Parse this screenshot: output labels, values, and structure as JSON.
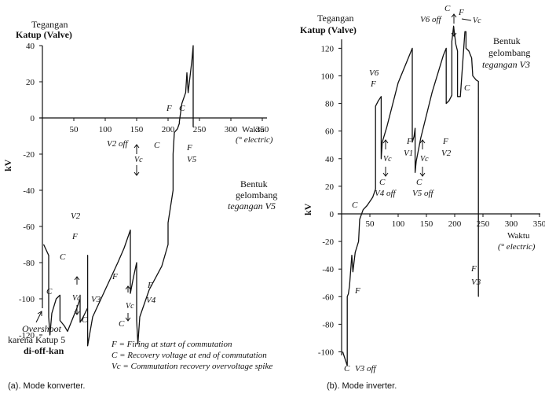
{
  "chart_data": [
    {
      "type": "line",
      "id": "a",
      "title": "",
      "caption": "(a). Mode konverter.",
      "ylabel_title_1": "Tegangan",
      "ylabel_title_2": "Katup (Valve)",
      "ylabel_unit": "kV",
      "xlabel_1": "Waktu",
      "xlabel_2": "(° electric)",
      "xlim": [
        0,
        350
      ],
      "ylim": [
        -120,
        40
      ],
      "xticks": [
        0,
        50,
        100,
        150,
        200,
        250,
        300,
        350
      ],
      "yticks": [
        40,
        20,
        0,
        -20,
        -40,
        -60,
        -80,
        -100,
        -120
      ],
      "xtick_labels": [
        "0",
        "50",
        "100",
        "150",
        "200",
        "250",
        "300",
        "350"
      ],
      "ytick_labels": [
        "40",
        "20",
        "0",
        "-20",
        "-40",
        "-60",
        "-80",
        "-100",
        "-120"
      ],
      "series": [
        {
          "points": [
            [
              2,
              -70
            ],
            [
              10,
              -76
            ],
            [
              10,
              -110
            ],
            [
              12,
              -120
            ],
            [
              15,
              -108
            ],
            [
              22,
              -100
            ],
            [
              28,
              -98
            ],
            [
              28,
              -112
            ],
            [
              35,
              -115
            ],
            [
              40,
              -118
            ],
            [
              55,
              -105
            ],
            [
              60,
              -100
            ],
            [
              60,
              -98
            ],
            [
              60,
              -113
            ],
            [
              65,
              -110
            ],
            [
              72,
              -105
            ],
            [
              72,
              -76
            ],
            [
              72,
              -126
            ],
            [
              80,
              -110
            ],
            [
              100,
              -95
            ],
            [
              120,
              -80
            ],
            [
              130,
              -72
            ],
            [
              140,
              -62
            ],
            [
              140,
              -97
            ],
            [
              145,
              -88
            ],
            [
              150,
              -80
            ],
            [
              150,
              -112
            ],
            [
              152,
              -125
            ],
            [
              155,
              -110
            ],
            [
              170,
              -95
            ],
            [
              190,
              -82
            ],
            [
              200,
              -70
            ],
            [
              200,
              -58
            ],
            [
              208,
              -40
            ],
            [
              208,
              -20
            ],
            [
              210,
              -8
            ],
            [
              215,
              -6
            ],
            [
              218,
              -3
            ],
            [
              218,
              -2
            ],
            [
              222,
              8
            ],
            [
              228,
              14
            ],
            [
              230,
              25
            ],
            [
              232,
              14
            ],
            [
              238,
              32
            ],
            [
              240,
              40
            ],
            [
              240,
              -5
            ]
          ]
        }
      ],
      "side_label_1": "Bentuk",
      "side_label_2": "gelombang",
      "side_label_3": "tegangan V5",
      "annotations": {
        "v2": "V2",
        "v3": "V3",
        "v4": "V4",
        "v5": "V5",
        "v2off": "V2 off",
        "vc": "Vc",
        "f": "F",
        "c": "C",
        "overshoot_1": "Overshoot",
        "overshoot_2": "karena Katup 5",
        "overshoot_3": "di-off-kan"
      },
      "legend": [
        "F = Firing at start of commutation",
        "C = Recovery voltage  at end of commutation",
        "Vc = Commutation recovery overvoltage spike"
      ]
    },
    {
      "type": "line",
      "id": "b",
      "title": "",
      "caption": "(b). Mode inverter.",
      "ylabel_title_1": "Tegangan",
      "ylabel_title_2": "Katup (Valve)",
      "ylabel_unit": "kV",
      "xlabel_1": "Waktu",
      "xlabel_2": "(° electric)",
      "xlim": [
        0,
        350
      ],
      "ylim": [
        -100,
        120
      ],
      "xticks": [
        0,
        50,
        100,
        150,
        200,
        250,
        300,
        350
      ],
      "yticks": [
        120,
        100,
        80,
        60,
        40,
        20,
        0,
        -20,
        -40,
        -60,
        -80,
        -100
      ],
      "xtick_labels": [
        "0",
        "50",
        "100",
        "150",
        "200",
        "250",
        "300",
        "350"
      ],
      "ytick_labels": [
        "120",
        "100",
        "80",
        "60",
        "40",
        "20",
        "0",
        "-20",
        "-40",
        "-60",
        "-80",
        "-100"
      ],
      "series": [
        {
          "points": [
            [
              2,
              -100
            ],
            [
              10,
              -110
            ],
            [
              10,
              -60
            ],
            [
              12,
              -58
            ],
            [
              14,
              -52
            ],
            [
              18,
              -30
            ],
            [
              20,
              -42
            ],
            [
              24,
              -28
            ],
            [
              30,
              -20
            ],
            [
              32,
              -4
            ],
            [
              38,
              3
            ],
            [
              45,
              6
            ],
            [
              55,
              12
            ],
            [
              60,
              18
            ],
            [
              60,
              78
            ],
            [
              65,
              82
            ],
            [
              70,
              85
            ],
            [
              70,
              40
            ],
            [
              72,
              52
            ],
            [
              80,
              63
            ],
            [
              100,
              95
            ],
            [
              115,
              110
            ],
            [
              125,
              120
            ],
            [
              125,
              52
            ],
            [
              128,
              56
            ],
            [
              130,
              62
            ],
            [
              130,
              30
            ],
            [
              132,
              38
            ],
            [
              140,
              55
            ],
            [
              160,
              88
            ],
            [
              180,
              115
            ],
            [
              185,
              120
            ],
            [
              185,
              80
            ],
            [
              190,
              82
            ],
            [
              195,
              86
            ],
            [
              195,
              125
            ],
            [
              198,
              136
            ],
            [
              202,
              123
            ],
            [
              205,
              118
            ],
            [
              205,
              85
            ],
            [
              210,
              85
            ],
            [
              218,
              132
            ],
            [
              220,
              132
            ],
            [
              220,
              120
            ],
            [
              225,
              118
            ],
            [
              230,
              113
            ],
            [
              232,
              100
            ],
            [
              238,
              97
            ],
            [
              242,
              96
            ],
            [
              242,
              -60
            ]
          ]
        }
      ],
      "side_label_1": "Bentuk",
      "side_label_2": "gelombang",
      "side_label_3": "tegangan V3",
      "annotations": {
        "v1": "V1",
        "v2": "V2",
        "v3": "V3",
        "v6": "V6",
        "v3off": "V3 off",
        "v4off": "V4 off",
        "v5off": "V5 off",
        "v6off": "V6 off",
        "vc": "Vc",
        "f": "F",
        "c": "C"
      }
    }
  ]
}
